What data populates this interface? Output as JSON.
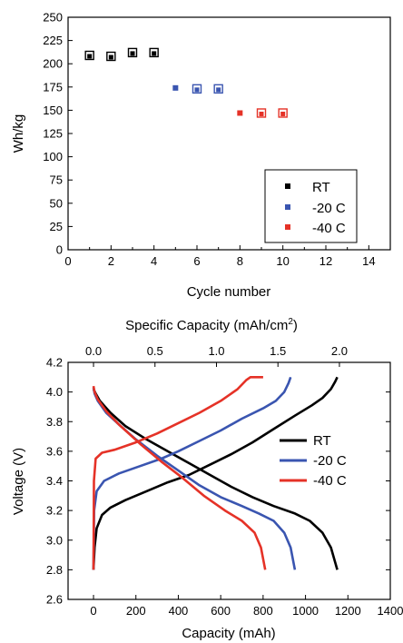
{
  "chart_data": [
    {
      "type": "scatter",
      "xlabel": "Cycle number",
      "ylabel": "Wh/kg",
      "xlim": [
        0,
        15
      ],
      "ylim": [
        0,
        250
      ],
      "xticks": [
        0,
        2,
        4,
        6,
        8,
        10,
        12,
        14
      ],
      "yticks": [
        0,
        25,
        50,
        75,
        100,
        125,
        150,
        175,
        200,
        225,
        250
      ],
      "legend_position": "bottom-right",
      "series": [
        {
          "name": "RT",
          "color": "#000000",
          "filled": [
            [
              1,
              207
            ],
            [
              2,
              207
            ],
            [
              3,
              210
            ],
            [
              4,
              210
            ]
          ],
          "open": [
            [
              1,
              209
            ],
            [
              2,
              208
            ],
            [
              3,
              212
            ],
            [
              4,
              212
            ]
          ]
        },
        {
          "name": "-20 C",
          "color": "#3a55b0",
          "filled": [
            [
              5,
              174
            ]
          ],
          "open": [
            [
              6,
              173
            ],
            [
              7,
              173
            ]
          ]
        },
        {
          "name": "-40 C",
          "color": "#e53227",
          "filled": [
            [
              8,
              147
            ]
          ],
          "open": [
            [
              9,
              147
            ],
            [
              10,
              147
            ]
          ]
        }
      ]
    },
    {
      "type": "line",
      "xlabel": "Capacity (mAh)",
      "top_xlabel_text": "Specific Capacity (mAh/cm",
      "top_xlabel_sup": "2",
      "top_xlabel_close": ")",
      "ylabel": "Voltage (V)",
      "xlim": [
        -120,
        1400
      ],
      "ylim": [
        2.6,
        4.2
      ],
      "xticks": [
        0,
        200,
        400,
        600,
        800,
        1000,
        1200,
        1400
      ],
      "top_xticks": [
        "0.0",
        "0.5",
        "1.0",
        "1.5",
        "2.0"
      ],
      "top_xticks_at_mAh": [
        0,
        290,
        580,
        870,
        1160
      ],
      "yticks": [
        "2.6",
        "2.8",
        "3.0",
        "3.2",
        "3.4",
        "3.6",
        "3.8",
        "4.0",
        "4.2"
      ],
      "legend_position": "right",
      "series": [
        {
          "name": "RT",
          "color": "#000000",
          "charge": [
            [
              0,
              2.8
            ],
            [
              5,
              2.95
            ],
            [
              15,
              3.08
            ],
            [
              40,
              3.17
            ],
            [
              80,
              3.22
            ],
            [
              150,
              3.27
            ],
            [
              250,
              3.33
            ],
            [
              350,
              3.39
            ],
            [
              450,
              3.44
            ],
            [
              550,
              3.51
            ],
            [
              650,
              3.58
            ],
            [
              750,
              3.66
            ],
            [
              850,
              3.75
            ],
            [
              950,
              3.84
            ],
            [
              1030,
              3.91
            ],
            [
              1080,
              3.96
            ],
            [
              1120,
              4.02
            ],
            [
              1140,
              4.07
            ],
            [
              1150,
              4.1
            ]
          ],
          "discharge": [
            [
              1150,
              2.8
            ],
            [
              1120,
              2.95
            ],
            [
              1080,
              3.05
            ],
            [
              1020,
              3.13
            ],
            [
              950,
              3.18
            ],
            [
              850,
              3.23
            ],
            [
              750,
              3.29
            ],
            [
              650,
              3.36
            ],
            [
              550,
              3.44
            ],
            [
              450,
              3.52
            ],
            [
              350,
              3.6
            ],
            [
              250,
              3.68
            ],
            [
              150,
              3.77
            ],
            [
              80,
              3.86
            ],
            [
              30,
              3.94
            ],
            [
              10,
              3.99
            ],
            [
              0,
              4.02
            ]
          ]
        },
        {
          "name": "-20 C",
          "color": "#3a55b0",
          "charge": [
            [
              0,
              2.8
            ],
            [
              3,
              3.2
            ],
            [
              15,
              3.33
            ],
            [
              50,
              3.4
            ],
            [
              120,
              3.45
            ],
            [
              220,
              3.5
            ],
            [
              320,
              3.55
            ],
            [
              400,
              3.6
            ],
            [
              500,
              3.67
            ],
            [
              600,
              3.74
            ],
            [
              700,
              3.82
            ],
            [
              800,
              3.89
            ],
            [
              860,
              3.94
            ],
            [
              900,
              4.0
            ],
            [
              920,
              4.06
            ],
            [
              930,
              4.1
            ]
          ],
          "discharge": [
            [
              950,
              2.8
            ],
            [
              930,
              2.95
            ],
            [
              900,
              3.05
            ],
            [
              850,
              3.13
            ],
            [
              780,
              3.18
            ],
            [
              700,
              3.23
            ],
            [
              600,
              3.29
            ],
            [
              500,
              3.37
            ],
            [
              400,
              3.47
            ],
            [
              300,
              3.57
            ],
            [
              200,
              3.68
            ],
            [
              120,
              3.78
            ],
            [
              60,
              3.86
            ],
            [
              20,
              3.94
            ],
            [
              5,
              3.99
            ],
            [
              0,
              4.03
            ]
          ]
        },
        {
          "name": "-40 C",
          "color": "#e53227",
          "charge": [
            [
              0,
              2.8
            ],
            [
              2,
              3.4
            ],
            [
              10,
              3.55
            ],
            [
              40,
              3.59
            ],
            [
              100,
              3.61
            ],
            [
              200,
              3.66
            ],
            [
              300,
              3.72
            ],
            [
              400,
              3.79
            ],
            [
              500,
              3.86
            ],
            [
              600,
              3.94
            ],
            [
              680,
              4.02
            ],
            [
              720,
              4.08
            ],
            [
              740,
              4.1
            ],
            [
              800,
              4.1
            ]
          ],
          "discharge": [
            [
              810,
              2.8
            ],
            [
              790,
              2.95
            ],
            [
              760,
              3.05
            ],
            [
              700,
              3.13
            ],
            [
              620,
              3.2
            ],
            [
              520,
              3.3
            ],
            [
              420,
              3.42
            ],
            [
              320,
              3.53
            ],
            [
              220,
              3.65
            ],
            [
              120,
              3.78
            ],
            [
              60,
              3.87
            ],
            [
              20,
              3.95
            ],
            [
              5,
              4.0
            ],
            [
              0,
              4.04
            ]
          ]
        }
      ]
    }
  ]
}
